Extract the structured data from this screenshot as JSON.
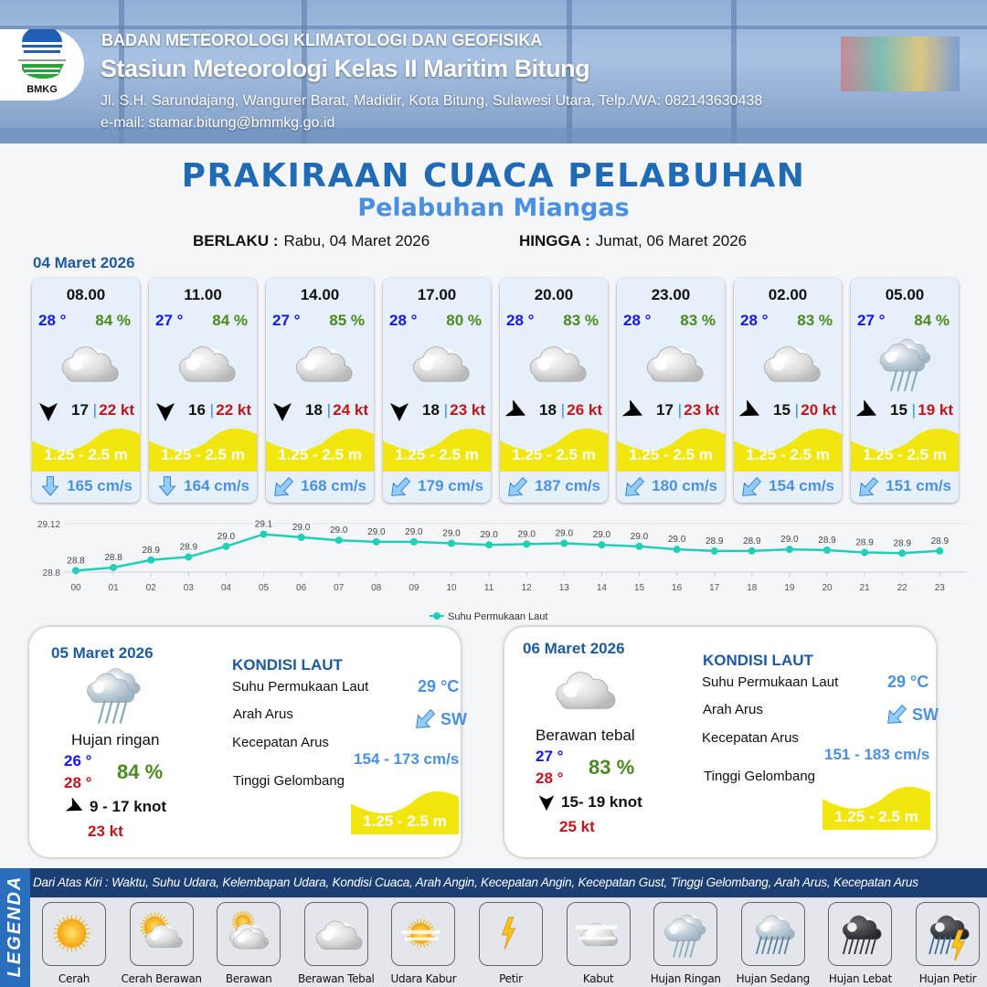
{
  "header": {
    "agency": "BADAN METEOROLOGI KLIMATOLOGI DAN GEOFISIKA",
    "station": "Stasiun Meteorologi Kelas II Maritim Bitung",
    "address": "Jl. S.H. Sarundajang, Wangurer Barat, Madidir, Kota Bitung, Sulawesi Utara, Telp./WA: 082143630438",
    "email": "e-mail: stamar.bitung@bmmkg.go.id",
    "logo_text": "BMKG"
  },
  "title": "PRAKIRAAN CUACA PELABUHAN",
  "subtitle": "Pelabuhan Miangas",
  "validity": {
    "from_label": "BERLAKU :",
    "from_value": "Rabu, 04 Maret 2026",
    "to_label": "HINGGA :",
    "to_value": "Jumat, 06 Maret 2026"
  },
  "day1_date": "04 Maret 2026",
  "colors": {
    "title": "#1f6bb5",
    "temp": "#1515ee",
    "humidity": "#4c8a1e",
    "gust": "#c3141b",
    "wave": "#f2e60e",
    "current": "#4a90e2",
    "sst_line": "#1fcfb8"
  },
  "hourly": [
    {
      "time": "08.00",
      "temp": "28 °",
      "hum": "84 %",
      "icon": "berawan-tebal",
      "wind_dir": "N",
      "wind": "17",
      "gust": "22 kt",
      "wave": "1.25 - 2.5 m",
      "cur_dir": "S",
      "cur": "165 cm/s"
    },
    {
      "time": "11.00",
      "temp": "27 °",
      "hum": "84 %",
      "icon": "berawan-tebal",
      "wind_dir": "N",
      "wind": "16",
      "gust": "22 kt",
      "wave": "1.25 - 2.5 m",
      "cur_dir": "S",
      "cur": "164 cm/s"
    },
    {
      "time": "14.00",
      "temp": "27 °",
      "hum": "85 %",
      "icon": "berawan-tebal",
      "wind_dir": "N",
      "wind": "18",
      "gust": "24 kt",
      "wave": "1.25 - 2.5 m",
      "cur_dir": "SW",
      "cur": "168 cm/s"
    },
    {
      "time": "17.00",
      "temp": "28 °",
      "hum": "80 %",
      "icon": "berawan-tebal",
      "wind_dir": "N",
      "wind": "18",
      "gust": "23 kt",
      "wave": "1.25 - 2.5 m",
      "cur_dir": "SW",
      "cur": "179 cm/s"
    },
    {
      "time": "20.00",
      "temp": "28 °",
      "hum": "83 %",
      "icon": "berawan-tebal",
      "wind_dir": "W",
      "wind": "18",
      "gust": "26 kt",
      "wave": "1.25 - 2.5 m",
      "cur_dir": "SW",
      "cur": "187 cm/s"
    },
    {
      "time": "23.00",
      "temp": "28 °",
      "hum": "83 %",
      "icon": "berawan-tebal",
      "wind_dir": "W",
      "wind": "17",
      "gust": "23 kt",
      "wave": "1.25 - 2.5 m",
      "cur_dir": "SW",
      "cur": "180 cm/s"
    },
    {
      "time": "02.00",
      "temp": "28 °",
      "hum": "83 %",
      "icon": "berawan-tebal",
      "wind_dir": "W",
      "wind": "15",
      "gust": "20 kt",
      "wave": "1.25 - 2.5 m",
      "cur_dir": "SW",
      "cur": "154 cm/s"
    },
    {
      "time": "05.00",
      "temp": "27 °",
      "hum": "84 %",
      "icon": "hujan-ringan",
      "wind_dir": "W",
      "wind": "15",
      "gust": "19 kt",
      "wave": "1.25 - 2.5 m",
      "cur_dir": "SW",
      "cur": "151 cm/s"
    }
  ],
  "chart_data": {
    "type": "line",
    "x": [
      "00",
      "01",
      "02",
      "03",
      "04",
      "05",
      "06",
      "07",
      "08",
      "09",
      "10",
      "11",
      "12",
      "13",
      "14",
      "15",
      "16",
      "17",
      "18",
      "19",
      "20",
      "21",
      "22",
      "23"
    ],
    "series": [
      {
        "name": "Suhu Permukaan Laut",
        "values": [
          28.81,
          28.83,
          28.88,
          28.9,
          28.97,
          29.05,
          29.03,
          29.01,
          29.0,
          29.0,
          28.99,
          28.98,
          28.985,
          28.99,
          28.98,
          28.97,
          28.95,
          28.94,
          28.94,
          28.95,
          28.945,
          28.93,
          28.925,
          28.94
        ],
        "labels": [
          "28.8",
          "28.8",
          "28.9",
          "28.9",
          "29.0",
          "29.1",
          "29.0",
          "29.0",
          "29.0",
          "29.0",
          "29.0",
          "29.0",
          "29.0",
          "29.0",
          "29.0",
          "29.0",
          "29.0",
          "28.9",
          "28.9",
          "29.0",
          "28.9",
          "28.9",
          "28.9",
          "28.9"
        ]
      }
    ],
    "yticks": [
      "28.8",
      "29.12"
    ],
    "ylim": [
      28.8,
      29.12
    ],
    "grid": true,
    "legend_position": "bottom"
  },
  "days": [
    {
      "date": "05 Maret 2026",
      "icon": "hujan-ringan",
      "condition": "Hujan ringan",
      "tmin": "26 °",
      "tmax": "28 °",
      "hum": "84 %",
      "wind_dir": "W",
      "wind": "9  - 17 knot",
      "gust": "23 kt",
      "sea_title": "KONDISI LAUT",
      "sst_label": "Suhu Permukaan Laut",
      "sst": "29 °C",
      "cur_dir_label": "Arah Arus",
      "cur_dir": "SW",
      "cur_speed_label": "Kecepatan Arus",
      "cur_speed": "154 - 173 cm/s",
      "wave_label": "Tinggi Gelombang",
      "wave": "1.25 - 2.5 m"
    },
    {
      "date": "06 Maret 2026",
      "icon": "berawan-tebal",
      "condition": "Berawan tebal",
      "tmin": "27 °",
      "tmax": "28 °",
      "hum": "83 %",
      "wind_dir": "N",
      "wind": "15- 19 knot",
      "gust": "25 kt",
      "sea_title": "KONDISI LAUT",
      "sst_label": "Suhu Permukaan Laut",
      "sst": "29 °C",
      "cur_dir_label": "Arah Arus",
      "cur_dir": "SW",
      "cur_speed_label": "Kecepatan Arus",
      "cur_speed": "151 - 183 cm/s",
      "wave_label": "Tinggi Gelombang",
      "wave": "1.25 - 2.5 m"
    }
  ],
  "legend": {
    "title": "LEGENDA",
    "description": "Dari Atas Kiri : Waktu, Suhu Udara, Kelembapan Udara, Kondisi Cuaca, Arah Angin, Kecepatan Angin, Kecepatan Gust, Tinggi Gelombang, Arah Arus, Kecepatan Arus",
    "items": [
      {
        "label": "Cerah",
        "icon": "cerah"
      },
      {
        "label": "Cerah Berawan",
        "icon": "cerah-berawan"
      },
      {
        "label": "Berawan",
        "icon": "berawan"
      },
      {
        "label": "Berawan Tebal",
        "icon": "berawan-tebal"
      },
      {
        "label": "Udara Kabur",
        "icon": "udara-kabur"
      },
      {
        "label": "Petir",
        "icon": "petir"
      },
      {
        "label": "Kabut",
        "icon": "kabut"
      },
      {
        "label": "Hujan Ringan",
        "icon": "hujan-ringan"
      },
      {
        "label": "Hujan Sedang",
        "icon": "hujan-sedang"
      },
      {
        "label": "Hujan Lebat",
        "icon": "hujan-lebat"
      },
      {
        "label": "Hujan Petir",
        "icon": "hujan-petir"
      }
    ]
  }
}
